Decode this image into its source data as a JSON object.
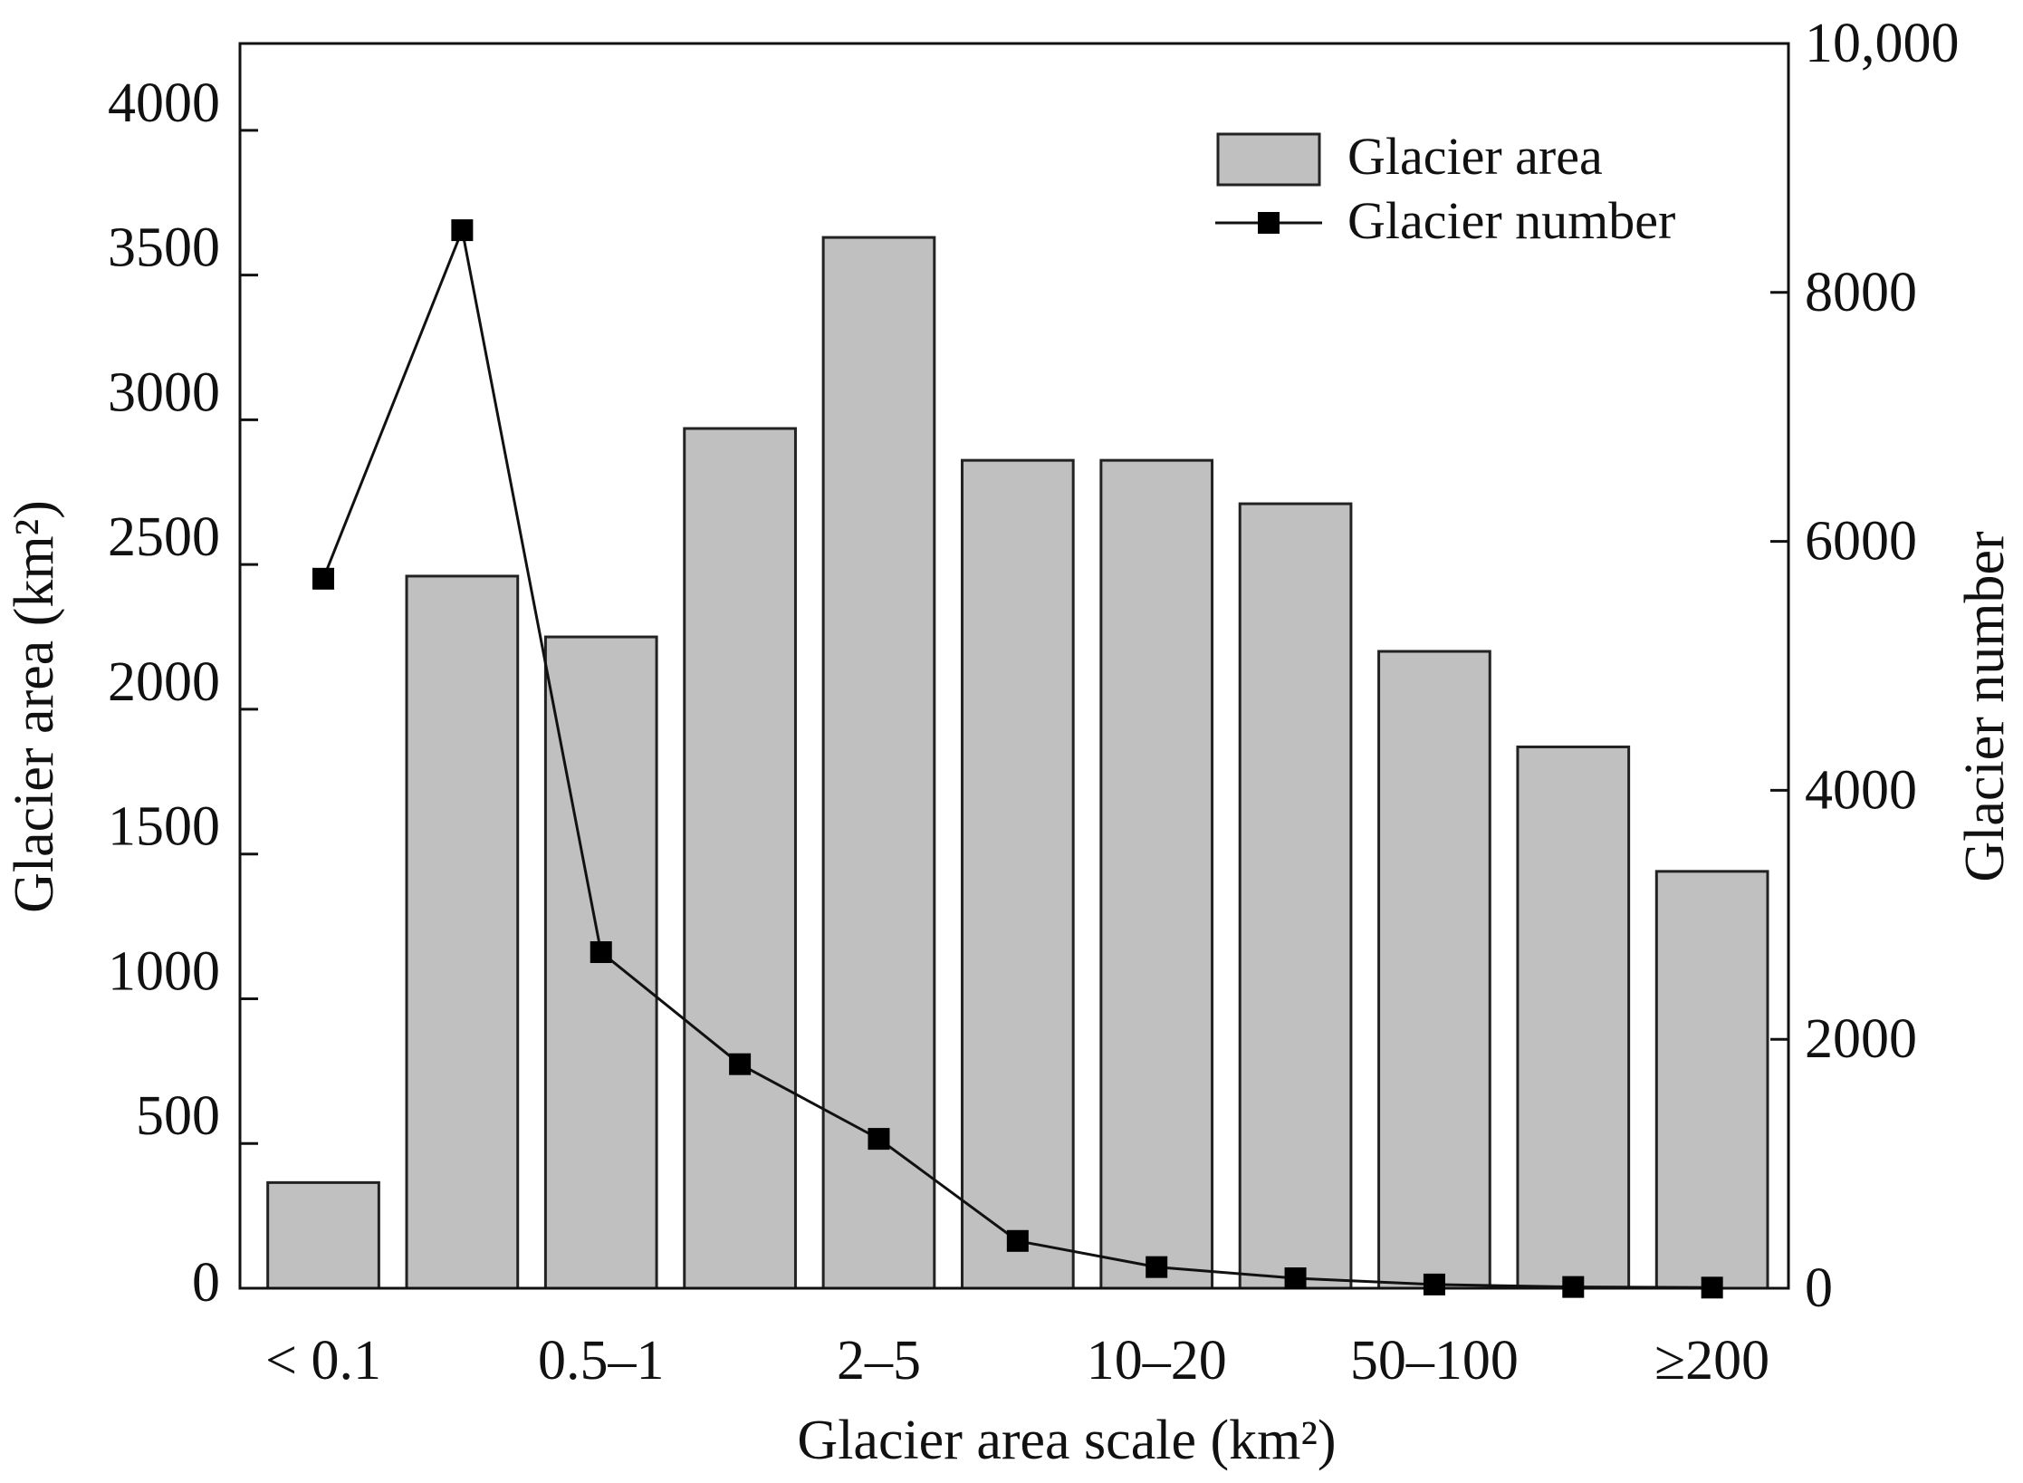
{
  "chart_data": {
    "type": "bar",
    "xlabel": "Glacier area scale (km²)",
    "ylabel": "Glacier area (km²)",
    "y2label": "Glacier number",
    "ylim": [
      0,
      4300
    ],
    "y2lim": [
      0,
      10000
    ],
    "yticks": [
      "0",
      "500",
      "1000",
      "1500",
      "2000",
      "2500",
      "3000",
      "3500",
      "4000"
    ],
    "y2ticks": [
      "0",
      "2000",
      "4000",
      "6000",
      "8000",
      "10,000"
    ],
    "categories": [
      "< 0.1",
      "",
      "0.5–1",
      "",
      "2–5",
      "",
      "10–20",
      "",
      "50–100",
      "",
      "≥200"
    ],
    "series": [
      {
        "name": "Glacier area",
        "kind": "bar",
        "axis": "left",
        "values": [
          365,
          2460,
          2250,
          2970,
          3630,
          2860,
          2860,
          2710,
          2200,
          1870,
          1440
        ]
      },
      {
        "name": "Glacier number",
        "kind": "line",
        "axis": "right",
        "values": [
          5700,
          8500,
          2700,
          1800,
          1200,
          380,
          170,
          80,
          30,
          10,
          5
        ]
      }
    ],
    "legend_position": "top-right",
    "grid": false,
    "colors": {
      "bar_fill": "#c0c0c0",
      "bar_stroke": "#222222",
      "line": "#111111",
      "marker": "#000000"
    }
  }
}
